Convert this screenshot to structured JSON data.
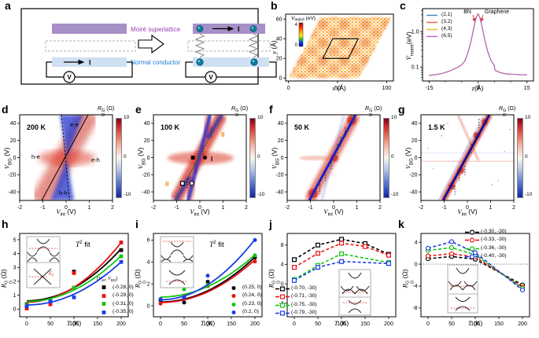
{
  "panels": {
    "a": "a",
    "b": "b",
    "c": "c",
    "d": "d",
    "e": "e",
    "f": "f",
    "g": "g",
    "h": "h",
    "i": "i",
    "j": "j",
    "k": "k"
  },
  "labels": {
    "moire_superlattice": "Moiré superlattice",
    "normal_conductor": "Normal conductor",
    "current": "I",
    "voltmeter": "V",
    "b_cbar": {
      "base": "V",
      "sub": "moiré",
      "unit": " (eV)"
    },
    "c_y": {
      "base": "V̄",
      "sub": "moiré",
      "unit": "(eV)"
    },
    "x_ang": {
      "base": "x",
      "unit": " (Å)"
    },
    "y_ang": {
      "base": "y",
      "unit": " (Å)"
    },
    "z_ang": {
      "base": "z",
      "unit": "(Å)"
    },
    "vint": {
      "base": "V",
      "sub": "int",
      "unit": " (V)"
    },
    "vbg": {
      "base": "V",
      "sub": "BG",
      "unit": " (V)"
    },
    "rd": {
      "base": "R",
      "sup": "G",
      "sub": "D",
      "unit": " (Ω)"
    },
    "t": {
      "base": "T",
      "unit": " (K)"
    },
    "t2": {
      "base": "T",
      "sup": "2",
      "rest": " fit"
    },
    "ef": {
      "base": "E",
      "sub": "F"
    },
    "lh": {
      "o": "(",
      "v": "V",
      "s1": "int",
      "sep": ", ",
      "s2": "BG",
      "c": ")"
    }
  },
  "chart_data": [
    {
      "id": "b",
      "type": "heatmap",
      "xrange": [
        -3,
        107
      ],
      "yrange": [
        -3,
        65
      ],
      "xticks": [
        0,
        50,
        100
      ],
      "yticks": [
        0,
        20,
        40,
        60
      ],
      "colorbar": {
        "max": 4,
        "min": 0
      },
      "sheet_outline": [
        [
          0,
          0
        ],
        [
          72,
          0
        ],
        [
          105,
          62
        ],
        [
          33,
          62
        ]
      ],
      "moire_cell": [
        [
          35,
          20
        ],
        [
          61,
          20
        ],
        [
          71,
          40
        ],
        [
          45,
          40
        ]
      ]
    },
    {
      "id": "c",
      "type": "line",
      "log": true,
      "xrange": [
        -17,
        17
      ],
      "yrange": [
        0.04,
        4.5
      ],
      "xticks": [
        -15,
        0,
        15
      ],
      "xminor": [
        -10,
        -5,
        5,
        10
      ],
      "yticks": [
        0.1,
        1.0
      ],
      "ylabels": [
        "0.1",
        "1.0"
      ],
      "yminor": [
        0.05,
        0.06,
        0.07,
        0.08,
        0.09,
        0.2,
        0.3,
        0.4,
        0.5,
        0.6,
        0.7,
        0.8,
        0.9,
        2,
        3,
        4
      ],
      "annotations": [
        "BN",
        "Graphene"
      ],
      "x": [
        -15,
        -13,
        -11,
        -9,
        -7,
        -6,
        -5,
        -4,
        -3,
        -2.5,
        -2,
        -1.5,
        -1,
        -0.5,
        0,
        0.5,
        1,
        1.5,
        2,
        2.5,
        3,
        4,
        5,
        5.2,
        6,
        7,
        9,
        11,
        13,
        15
      ],
      "y": [
        0.058,
        0.06,
        0.065,
        0.075,
        0.09,
        0.1,
        0.115,
        0.15,
        0.27,
        0.4,
        0.62,
        1.05,
        1.75,
        2.6,
        3.2,
        2.6,
        1.75,
        1.05,
        0.62,
        0.4,
        0.27,
        0.15,
        0.11,
        0.08,
        0.075,
        0.068,
        0.063,
        0.062,
        0.06,
        0.06
      ],
      "series": [
        {
          "label": "(2,1)",
          "color": "#3a87c8"
        },
        {
          "label": "(3,2)",
          "color": "#f2603c"
        },
        {
          "label": "(4,3)",
          "color": "#f2b33c"
        },
        {
          "label": "(6,5)",
          "color": "#b465c8"
        }
      ]
    },
    {
      "id": "d",
      "type": "heatmap",
      "title": "200 K",
      "xrange": [
        -2,
        2
      ],
      "yrange": [
        -50,
        50
      ],
      "xticks": [
        -2,
        -1,
        0,
        1,
        2
      ],
      "yticks": [
        -40,
        -20,
        0,
        20,
        40
      ],
      "colorbar": {
        "max": 10,
        "mid": 0,
        "min": -10
      },
      "regions": [
        "e-e",
        "h-e",
        "e-h",
        "h-h"
      ],
      "main_diagonal": [
        [
          -1.05,
          -50
        ],
        [
          0.95,
          50
        ]
      ],
      "secondary_line": [
        [
          -0.2,
          50
        ],
        [
          0.15,
          -50
        ]
      ]
    },
    {
      "id": "e",
      "type": "heatmap",
      "title": "100 K",
      "xrange": [
        -2,
        2
      ],
      "yrange": [
        -50,
        50
      ],
      "xticks": [
        -2,
        -1,
        0,
        1,
        2
      ],
      "yticks": [
        -40,
        -20,
        0,
        20,
        40
      ],
      "annotations": [
        "I",
        "II",
        "II"
      ],
      "markers": [
        {
          "shape": "square",
          "filled": true,
          "x": -0.3,
          "y": 0
        },
        {
          "shape": "circle",
          "filled": true,
          "x": 0.22,
          "y": 0
        },
        {
          "shape": "square",
          "filled": false,
          "x": -0.75,
          "y": -30
        },
        {
          "shape": "circle",
          "filled": false,
          "x": -0.35,
          "y": -30
        }
      ]
    },
    {
      "id": "f",
      "type": "heatmap",
      "title": "50 K",
      "xrange": [
        -2,
        2
      ],
      "yrange": [
        -50,
        50
      ],
      "xticks": [
        -2,
        -1,
        0,
        1,
        2
      ],
      "yticks": [
        -40,
        -20,
        0,
        20,
        40
      ]
    },
    {
      "id": "g",
      "type": "heatmap",
      "title": "1.5 K",
      "xrange": [
        -2,
        2
      ],
      "yrange": [
        -50,
        50
      ],
      "xticks": [
        -2,
        -1,
        0,
        1,
        2
      ],
      "yticks": [
        -40,
        -20,
        0,
        20,
        40
      ]
    },
    {
      "id": "h",
      "type": "scatter",
      "marker": "square",
      "open": false,
      "xrange": [
        -15,
        215
      ],
      "yrange": [
        -0.55,
        5.45
      ],
      "xticks": [
        0,
        50,
        100,
        150,
        200
      ],
      "yticks": [
        0,
        1,
        2,
        3,
        4,
        5
      ],
      "x": [
        0,
        50,
        100,
        200
      ],
      "series": [
        {
          "label": "(-0.28, 0)",
          "color": "#000000",
          "y": [
            0.35,
            0.65,
            2.7,
            4.25
          ],
          "fit": [
            0.6,
            4.35
          ]
        },
        {
          "label": "(-0.29, 0)",
          "color": "#e81212",
          "y": [
            0.05,
            0.35,
            2.6,
            4.8
          ],
          "fit": [
            0.5,
            4.8
          ]
        },
        {
          "label": "(-0.31, 0)",
          "color": "#14c414",
          "y": [
            0.3,
            0.6,
            1.55,
            3.8
          ],
          "fit": [
            0.55,
            3.85
          ]
        },
        {
          "label": "(-0.35, 0)",
          "color": "#1d3de8",
          "y": [
            0.2,
            0.55,
            0.85,
            3.4
          ],
          "fit": [
            0.3,
            3.4
          ]
        }
      ]
    },
    {
      "id": "i",
      "type": "scatter",
      "marker": "circle",
      "open": false,
      "xrange": [
        -15,
        215
      ],
      "yrange": [
        -1.0,
        6.6
      ],
      "xticks": [
        0,
        50,
        100,
        150,
        200
      ],
      "yticks": [
        0,
        2,
        4,
        6
      ],
      "x": [
        0,
        50,
        100,
        200
      ],
      "series": [
        {
          "label": "(0.25, 0)",
          "color": "#000000",
          "y": [
            0.5,
            0.3,
            2.2,
            4.4
          ],
          "fit": [
            0.35,
            4.45
          ]
        },
        {
          "label": "(0.24, 0)",
          "color": "#e81212",
          "y": [
            0.2,
            0.85,
            1.8,
            4.05
          ],
          "fit": [
            0.3,
            4.2
          ]
        },
        {
          "label": "(0.23, 0)",
          "color": "#14c414",
          "y": [
            0.6,
            1.5,
            1.9,
            4.6
          ],
          "fit": [
            0.8,
            4.65
          ]
        },
        {
          "label": "(0.2, 0)",
          "color": "#1d3de8",
          "y": [
            0.6,
            0.75,
            2.75,
            6.0
          ],
          "fit": [
            0.55,
            6.05
          ]
        }
      ]
    },
    {
      "id": "j",
      "type": "scatter",
      "marker": "square",
      "open": true,
      "line": "dashed",
      "xrange": [
        -15,
        215
      ],
      "yrange": [
        -6.8,
        10.4
      ],
      "xticks": [
        0,
        50,
        100,
        150,
        200
      ],
      "yticks": [
        -4,
        0,
        4,
        8
      ],
      "series": [
        {
          "label": "(-0.70, -30)",
          "color": "#000000",
          "x": [
            0,
            50,
            100,
            150,
            200
          ],
          "y": [
            5.0,
            8.0,
            9.2,
            8.3,
            6.1
          ]
        },
        {
          "label": "(-0.71, -30)",
          "color": "#e81212",
          "x": [
            0,
            50,
            100,
            150,
            200
          ],
          "y": [
            3.4,
            6.3,
            8.4,
            7.7,
            5.9
          ]
        },
        {
          "label": "(-0.75, -30)",
          "color": "#14c414",
          "x": [
            0,
            50,
            100,
            200
          ],
          "y": [
            0.9,
            3.8,
            6.2,
            4.4
          ]
        },
        {
          "label": "(-0.79, -30)",
          "color": "#1d3de8",
          "x": [
            0,
            50,
            100,
            200
          ],
          "y": [
            0.7,
            3.4,
            4.6,
            4.2
          ]
        }
      ]
    },
    {
      "id": "k",
      "type": "scatter",
      "marker": "circle",
      "open": true,
      "line": "dashed",
      "zero_line": true,
      "xrange": [
        -15,
        215
      ],
      "yrange": [
        -9.6,
        5.6
      ],
      "xticks": [
        0,
        50,
        100,
        150,
        200
      ],
      "yticks": [
        -8,
        -4,
        0,
        4
      ],
      "x": [
        0,
        50,
        100,
        200
      ],
      "series": [
        {
          "label": "(-0.30, -30)",
          "color": "#000000",
          "y": [
            1.0,
            1.4,
            0.9,
            -3.8
          ]
        },
        {
          "label": "(-0.33, -30)",
          "color": "#e81212",
          "y": [
            1.5,
            1.9,
            1.3,
            -4.2
          ]
        },
        {
          "label": "(-0.36, -30)",
          "color": "#14c414",
          "y": [
            2.5,
            3.0,
            1.7,
            -4.4
          ]
        },
        {
          "label": "(-0.40, -30)",
          "color": "#1d3de8",
          "y": [
            2.9,
            4.1,
            2.1,
            -4.7
          ]
        }
      ]
    }
  ]
}
